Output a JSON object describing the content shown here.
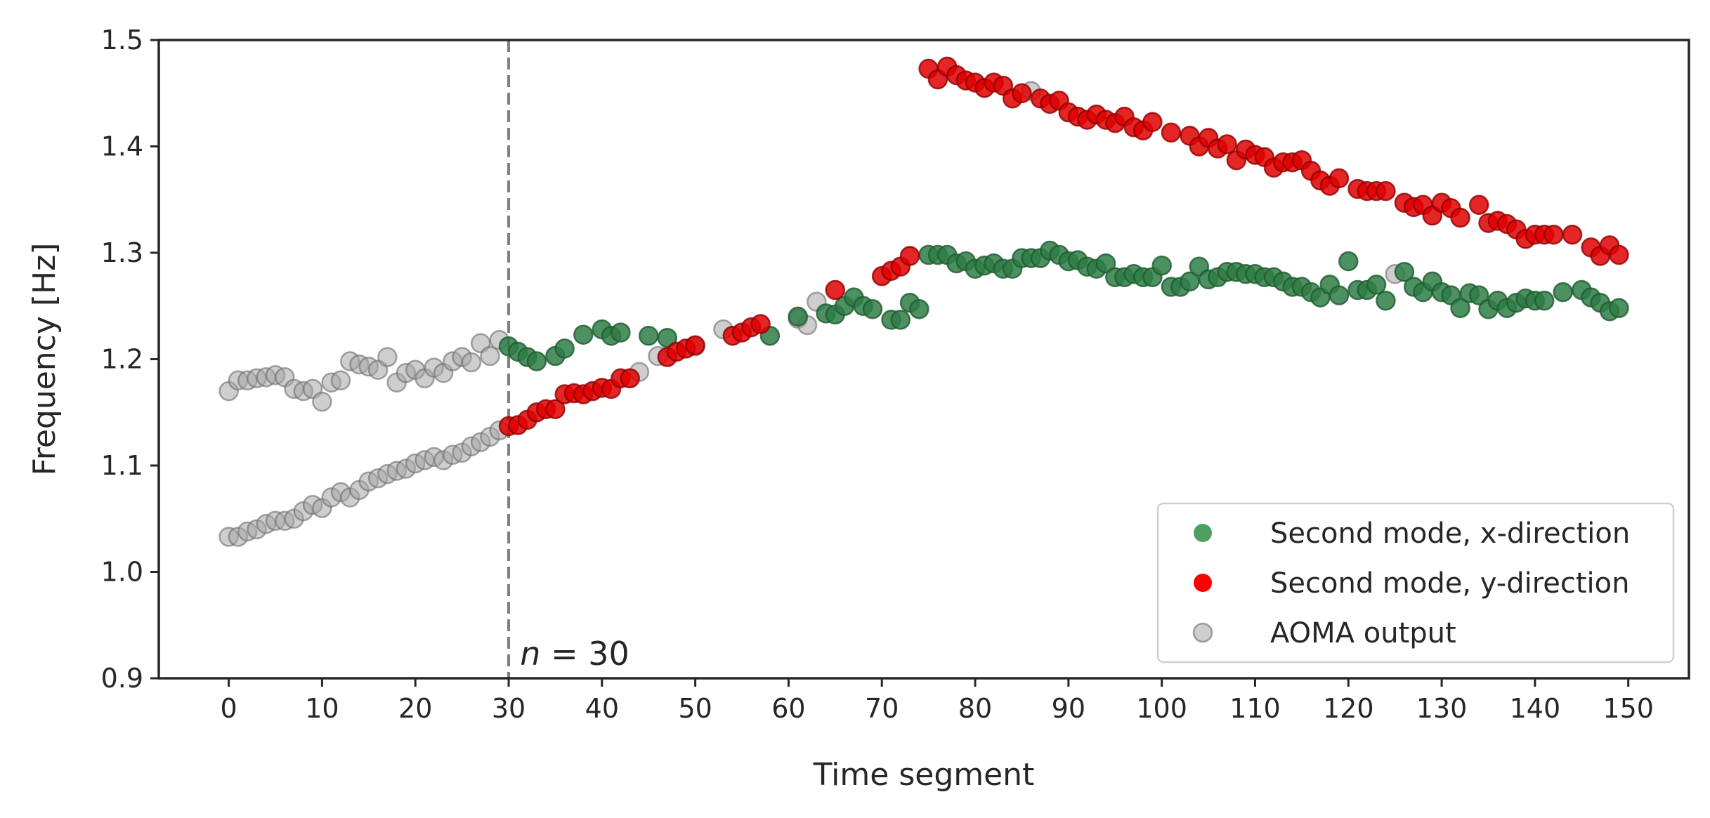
{
  "chart_data": {
    "type": "scatter",
    "xlabel": "Time segment",
    "ylabel": "Frequency [Hz]",
    "xlim": [
      -7.5,
      156.5
    ],
    "ylim": [
      0.9,
      1.5
    ],
    "xticks": [
      0,
      10,
      20,
      30,
      40,
      50,
      60,
      70,
      80,
      90,
      100,
      110,
      120,
      130,
      140,
      150
    ],
    "xtick_labels": [
      "0",
      "10",
      "20",
      "30",
      "40",
      "50",
      "60",
      "70",
      "80",
      "90",
      "100",
      "110",
      "120",
      "130",
      "140",
      "150"
    ],
    "yticks": [
      0.9,
      1.0,
      1.1,
      1.2,
      1.3,
      1.4,
      1.5
    ],
    "ytick_labels": [
      "0.9",
      "1.0",
      "1.1",
      "1.2",
      "1.3",
      "1.4",
      "1.5"
    ],
    "grid": false,
    "legend_position": "lower-right",
    "vline": {
      "x": 30,
      "style": "dashed",
      "color": "#808080"
    },
    "annotation": {
      "x": 31,
      "y": 0.91,
      "italic": "n",
      "rest": " = 30"
    },
    "series": [
      {
        "name": "AOMA output",
        "color": "#a6a6a6",
        "points": [
          [
            0,
            1.033
          ],
          [
            1,
            1.033
          ],
          [
            2,
            1.038
          ],
          [
            3,
            1.04
          ],
          [
            4,
            1.045
          ],
          [
            5,
            1.048
          ],
          [
            6,
            1.048
          ],
          [
            7,
            1.05
          ],
          [
            8,
            1.057
          ],
          [
            9,
            1.063
          ],
          [
            10,
            1.06
          ],
          [
            11,
            1.07
          ],
          [
            12,
            1.075
          ],
          [
            13,
            1.07
          ],
          [
            14,
            1.077
          ],
          [
            15,
            1.085
          ],
          [
            16,
            1.088
          ],
          [
            17,
            1.092
          ],
          [
            18,
            1.095
          ],
          [
            19,
            1.097
          ],
          [
            20,
            1.102
          ],
          [
            21,
            1.105
          ],
          [
            22,
            1.108
          ],
          [
            23,
            1.105
          ],
          [
            24,
            1.11
          ],
          [
            25,
            1.112
          ],
          [
            26,
            1.118
          ],
          [
            27,
            1.122
          ],
          [
            28,
            1.127
          ],
          [
            29,
            1.133
          ],
          [
            0,
            1.17
          ],
          [
            1,
            1.18
          ],
          [
            2,
            1.18
          ],
          [
            3,
            1.182
          ],
          [
            4,
            1.183
          ],
          [
            5,
            1.185
          ],
          [
            6,
            1.183
          ],
          [
            7,
            1.172
          ],
          [
            8,
            1.17
          ],
          [
            9,
            1.172
          ],
          [
            10,
            1.16
          ],
          [
            11,
            1.178
          ],
          [
            12,
            1.18
          ],
          [
            13,
            1.198
          ],
          [
            14,
            1.195
          ],
          [
            15,
            1.193
          ],
          [
            16,
            1.19
          ],
          [
            17,
            1.202
          ],
          [
            18,
            1.178
          ],
          [
            19,
            1.187
          ],
          [
            20,
            1.19
          ],
          [
            21,
            1.182
          ],
          [
            22,
            1.192
          ],
          [
            23,
            1.187
          ],
          [
            24,
            1.198
          ],
          [
            25,
            1.202
          ],
          [
            26,
            1.197
          ],
          [
            27,
            1.215
          ],
          [
            28,
            1.203
          ],
          [
            29,
            1.218
          ],
          [
            44,
            1.188
          ],
          [
            46,
            1.203
          ],
          [
            50,
            1.212
          ],
          [
            53,
            1.228
          ],
          [
            61,
            1.238
          ],
          [
            62,
            1.232
          ],
          [
            63,
            1.254
          ],
          [
            86,
            1.452
          ],
          [
            125,
            1.28
          ]
        ]
      },
      {
        "name": "Second mode, x-direction",
        "color": "#2e7d45",
        "points": [
          [
            30,
            1.212
          ],
          [
            31,
            1.207
          ],
          [
            32,
            1.202
          ],
          [
            33,
            1.198
          ],
          [
            35,
            1.203
          ],
          [
            36,
            1.21
          ],
          [
            38,
            1.223
          ],
          [
            40,
            1.228
          ],
          [
            41,
            1.222
          ],
          [
            42,
            1.225
          ],
          [
            45,
            1.222
          ],
          [
            47,
            1.22
          ],
          [
            58,
            1.222
          ],
          [
            61,
            1.24
          ],
          [
            64,
            1.243
          ],
          [
            65,
            1.242
          ],
          [
            66,
            1.25
          ],
          [
            67,
            1.258
          ],
          [
            68,
            1.25
          ],
          [
            69,
            1.247
          ],
          [
            71,
            1.237
          ],
          [
            72,
            1.237
          ],
          [
            73,
            1.253
          ],
          [
            74,
            1.247
          ],
          [
            75,
            1.298
          ],
          [
            76,
            1.298
          ],
          [
            77,
            1.298
          ],
          [
            78,
            1.29
          ],
          [
            79,
            1.292
          ],
          [
            80,
            1.285
          ],
          [
            81,
            1.288
          ],
          [
            82,
            1.29
          ],
          [
            83,
            1.285
          ],
          [
            84,
            1.285
          ],
          [
            85,
            1.295
          ],
          [
            86,
            1.295
          ],
          [
            87,
            1.295
          ],
          [
            88,
            1.302
          ],
          [
            89,
            1.298
          ],
          [
            90,
            1.292
          ],
          [
            91,
            1.293
          ],
          [
            92,
            1.287
          ],
          [
            93,
            1.285
          ],
          [
            94,
            1.29
          ],
          [
            95,
            1.277
          ],
          [
            96,
            1.277
          ],
          [
            97,
            1.28
          ],
          [
            98,
            1.277
          ],
          [
            99,
            1.277
          ],
          [
            100,
            1.288
          ],
          [
            101,
            1.268
          ],
          [
            102,
            1.268
          ],
          [
            103,
            1.273
          ],
          [
            104,
            1.287
          ],
          [
            105,
            1.275
          ],
          [
            106,
            1.277
          ],
          [
            107,
            1.282
          ],
          [
            108,
            1.282
          ],
          [
            109,
            1.28
          ],
          [
            110,
            1.28
          ],
          [
            111,
            1.277
          ],
          [
            112,
            1.277
          ],
          [
            113,
            1.273
          ],
          [
            114,
            1.268
          ],
          [
            115,
            1.268
          ],
          [
            116,
            1.263
          ],
          [
            117,
            1.258
          ],
          [
            118,
            1.27
          ],
          [
            119,
            1.26
          ],
          [
            120,
            1.292
          ],
          [
            121,
            1.265
          ],
          [
            122,
            1.265
          ],
          [
            123,
            1.27
          ],
          [
            124,
            1.255
          ],
          [
            126,
            1.282
          ],
          [
            127,
            1.268
          ],
          [
            128,
            1.263
          ],
          [
            129,
            1.273
          ],
          [
            130,
            1.263
          ],
          [
            131,
            1.26
          ],
          [
            132,
            1.248
          ],
          [
            133,
            1.262
          ],
          [
            134,
            1.26
          ],
          [
            135,
            1.247
          ],
          [
            136,
            1.255
          ],
          [
            137,
            1.248
          ],
          [
            138,
            1.253
          ],
          [
            139,
            1.257
          ],
          [
            140,
            1.255
          ],
          [
            141,
            1.255
          ],
          [
            143,
            1.263
          ],
          [
            145,
            1.265
          ],
          [
            146,
            1.258
          ],
          [
            147,
            1.253
          ],
          [
            148,
            1.245
          ],
          [
            149,
            1.248
          ]
        ]
      },
      {
        "name": "Second mode, y-direction",
        "color": "#e00000",
        "points": [
          [
            30,
            1.137
          ],
          [
            31,
            1.138
          ],
          [
            32,
            1.143
          ],
          [
            33,
            1.15
          ],
          [
            34,
            1.153
          ],
          [
            35,
            1.153
          ],
          [
            36,
            1.167
          ],
          [
            37,
            1.168
          ],
          [
            38,
            1.167
          ],
          [
            39,
            1.17
          ],
          [
            40,
            1.173
          ],
          [
            41,
            1.172
          ],
          [
            42,
            1.182
          ],
          [
            43,
            1.182
          ],
          [
            47,
            1.202
          ],
          [
            48,
            1.207
          ],
          [
            49,
            1.21
          ],
          [
            50,
            1.213
          ],
          [
            54,
            1.222
          ],
          [
            55,
            1.225
          ],
          [
            56,
            1.23
          ],
          [
            57,
            1.233
          ],
          [
            65,
            1.265
          ],
          [
            70,
            1.278
          ],
          [
            71,
            1.283
          ],
          [
            72,
            1.287
          ],
          [
            73,
            1.297
          ],
          [
            75,
            1.473
          ],
          [
            76,
            1.463
          ],
          [
            77,
            1.475
          ],
          [
            78,
            1.467
          ],
          [
            79,
            1.462
          ],
          [
            80,
            1.46
          ],
          [
            81,
            1.455
          ],
          [
            82,
            1.46
          ],
          [
            83,
            1.457
          ],
          [
            84,
            1.445
          ],
          [
            85,
            1.45
          ],
          [
            87,
            1.445
          ],
          [
            88,
            1.44
          ],
          [
            89,
            1.443
          ],
          [
            90,
            1.432
          ],
          [
            91,
            1.428
          ],
          [
            92,
            1.425
          ],
          [
            93,
            1.43
          ],
          [
            94,
            1.425
          ],
          [
            95,
            1.422
          ],
          [
            96,
            1.428
          ],
          [
            97,
            1.418
          ],
          [
            98,
            1.415
          ],
          [
            99,
            1.423
          ],
          [
            101,
            1.413
          ],
          [
            103,
            1.41
          ],
          [
            104,
            1.4
          ],
          [
            105,
            1.408
          ],
          [
            106,
            1.398
          ],
          [
            107,
            1.402
          ],
          [
            108,
            1.387
          ],
          [
            109,
            1.397
          ],
          [
            110,
            1.392
          ],
          [
            111,
            1.39
          ],
          [
            112,
            1.38
          ],
          [
            113,
            1.385
          ],
          [
            114,
            1.385
          ],
          [
            115,
            1.387
          ],
          [
            116,
            1.377
          ],
          [
            117,
            1.368
          ],
          [
            118,
            1.363
          ],
          [
            119,
            1.37
          ],
          [
            121,
            1.36
          ],
          [
            122,
            1.358
          ],
          [
            123,
            1.358
          ],
          [
            124,
            1.358
          ],
          [
            126,
            1.347
          ],
          [
            127,
            1.343
          ],
          [
            128,
            1.345
          ],
          [
            129,
            1.335
          ],
          [
            130,
            1.347
          ],
          [
            131,
            1.342
          ],
          [
            132,
            1.333
          ],
          [
            134,
            1.345
          ],
          [
            135,
            1.328
          ],
          [
            136,
            1.33
          ],
          [
            137,
            1.327
          ],
          [
            138,
            1.322
          ],
          [
            139,
            1.313
          ],
          [
            140,
            1.317
          ],
          [
            141,
            1.317
          ],
          [
            142,
            1.317
          ],
          [
            144,
            1.317
          ],
          [
            146,
            1.305
          ],
          [
            147,
            1.297
          ],
          [
            148,
            1.307
          ],
          [
            149,
            1.298
          ]
        ]
      }
    ],
    "legend": [
      {
        "label": "Second mode, x-direction",
        "color": "#4f9f63"
      },
      {
        "label": "Second mode, y-direction",
        "color": "#ff0000"
      },
      {
        "label": "AOMA output",
        "color": "#a6a6a6"
      }
    ]
  }
}
